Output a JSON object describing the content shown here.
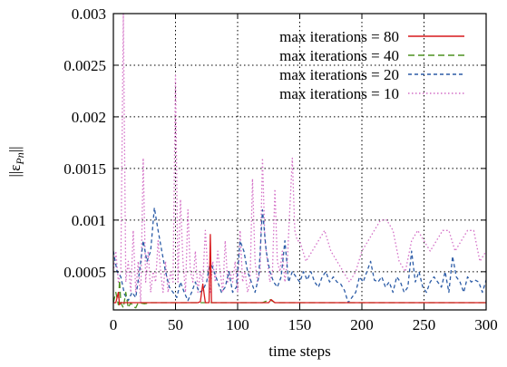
{
  "chart_data": {
    "type": "line",
    "xlabel": "time steps",
    "ylabel": "||ε",
    "ylabel_sub": "Pn",
    "ylabel_end": "||",
    "xlim": [
      0,
      300
    ],
    "ylim": [
      0.00013,
      0.003
    ],
    "x_ticks": [
      0,
      50,
      100,
      150,
      200,
      250,
      300
    ],
    "x_tick_labels": [
      "0",
      "50",
      "100",
      "150",
      "200",
      "250",
      "300"
    ],
    "y_ticks": [
      0.0005,
      0.001,
      0.0015,
      0.002,
      0.0025,
      0.003
    ],
    "y_tick_labels": [
      "0.0005",
      "0.001",
      "0.0015",
      "0.002",
      "0.0025",
      "0.003"
    ],
    "grid": true,
    "legend_position": "top-right",
    "series": [
      {
        "name": "max iterations = 80",
        "color": "#d7191c",
        "dash": "solid",
        "x": [
          0,
          2,
          4,
          5,
          6,
          8,
          10,
          15,
          20,
          40,
          60,
          68,
          70,
          72,
          74,
          76,
          77,
          78,
          79,
          80,
          82,
          90,
          100,
          120,
          125,
          127,
          130,
          140,
          150,
          200,
          250,
          300
        ],
        "y": [
          0.0002,
          0.0002,
          0.0003,
          0.00018,
          0.0002,
          0.0002,
          0.0002,
          0.0002,
          0.0002,
          0.0002,
          0.0002,
          0.0002,
          0.00021,
          0.00038,
          0.0002,
          0.0002,
          0.0002,
          0.00086,
          0.0002,
          0.0002,
          0.0002,
          0.0002,
          0.0002,
          0.0002,
          0.0002,
          0.00023,
          0.0002,
          0.0002,
          0.0002,
          0.0002,
          0.0002,
          0.0002
        ]
      },
      {
        "name": "max iterations = 40",
        "color": "#4d9221",
        "dash": "long-dash",
        "x": [
          0,
          2,
          4,
          5,
          6,
          8,
          10,
          12,
          14,
          16,
          18,
          20,
          25,
          30,
          60,
          100,
          120,
          126,
          130,
          150,
          200,
          250,
          300
        ],
        "y": [
          0.0002,
          0.0003,
          0.00018,
          0.00042,
          0.0002,
          0.00015,
          0.0003,
          0.00015,
          0.0002,
          0.00016,
          0.00015,
          0.0002,
          0.00019,
          0.0002,
          0.0002,
          0.0002,
          0.0002,
          0.00023,
          0.0002,
          0.0002,
          0.0002,
          0.0002,
          0.0002
        ]
      },
      {
        "name": "max iterations = 20",
        "color": "#2b5ba6",
        "dash": "dash",
        "x": [
          0,
          3,
          6,
          9,
          12,
          15,
          18,
          21,
          24,
          27,
          30,
          33,
          36,
          39,
          42,
          45,
          48,
          51,
          54,
          57,
          60,
          63,
          66,
          69,
          72,
          75,
          78,
          81,
          84,
          87,
          90,
          93,
          96,
          99,
          102,
          105,
          108,
          111,
          114,
          117,
          120,
          123,
          126,
          129,
          132,
          135,
          138,
          141,
          144,
          147,
          150,
          153,
          156,
          159,
          162,
          165,
          168,
          171,
          174,
          177,
          180,
          183,
          186,
          189,
          192,
          195,
          198,
          201,
          204,
          207,
          210,
          213,
          216,
          219,
          222,
          225,
          228,
          231,
          234,
          237,
          240,
          243,
          246,
          249,
          252,
          255,
          258,
          261,
          264,
          267,
          270,
          273,
          276,
          279,
          282,
          285,
          288,
          291,
          294,
          297,
          300
        ],
        "y": [
          0.0007,
          0.0005,
          0.00045,
          0.00028,
          0.00022,
          0.0003,
          0.00025,
          0.0005,
          0.0008,
          0.0006,
          0.0007,
          0.00112,
          0.0009,
          0.0007,
          0.0005,
          0.00035,
          0.0003,
          0.00025,
          0.0004,
          0.0003,
          0.00022,
          0.0003,
          0.0004,
          0.0003,
          0.00032,
          0.0004,
          0.0006,
          0.0005,
          0.0004,
          0.0003,
          0.00035,
          0.0005,
          0.0003,
          0.00035,
          0.0008,
          0.0007,
          0.0005,
          0.0004,
          0.0003,
          0.00045,
          0.0011,
          0.0007,
          0.0005,
          0.0004,
          0.00035,
          0.00045,
          0.0008,
          0.0004,
          0.0005,
          0.00045,
          0.0004,
          0.0005,
          0.00042,
          0.0005,
          0.0004,
          0.00035,
          0.00045,
          0.0005,
          0.0004,
          0.00045,
          0.0004,
          0.00038,
          0.00032,
          0.0002,
          0.00025,
          0.0003,
          0.00045,
          0.0004,
          0.0005,
          0.0006,
          0.00042,
          0.0004,
          0.00045,
          0.00035,
          0.0004,
          0.0003,
          0.00045,
          0.0004,
          0.0003,
          0.00035,
          0.0007,
          0.0004,
          0.0005,
          0.00035,
          0.0003,
          0.0004,
          0.00045,
          0.0004,
          0.00035,
          0.0005,
          0.0003,
          0.00065,
          0.00045,
          0.0004,
          0.0003,
          0.00045,
          0.0004,
          0.00042,
          0.0004,
          0.0003,
          0.00042
        ]
      },
      {
        "name": "max iterations = 10",
        "color": "#d36fc6",
        "dash": "dot",
        "x": [
          0,
          2,
          4,
          6,
          8,
          10,
          12,
          14,
          16,
          18,
          20,
          22,
          24,
          26,
          28,
          30,
          32,
          34,
          36,
          38,
          40,
          42,
          44,
          46,
          48,
          50,
          52,
          54,
          56,
          58,
          60,
          62,
          64,
          66,
          68,
          70,
          72,
          74,
          76,
          78,
          80,
          82,
          84,
          86,
          88,
          90,
          92,
          94,
          96,
          98,
          100,
          102,
          104,
          106,
          108,
          110,
          112,
          114,
          116,
          118,
          120,
          122,
          124,
          126,
          128,
          130,
          132,
          134,
          136,
          138,
          140,
          142,
          144,
          146,
          148,
          150,
          155,
          160,
          165,
          170,
          175,
          180,
          185,
          190,
          195,
          200,
          205,
          210,
          215,
          220,
          225,
          230,
          235,
          240,
          245,
          250,
          255,
          260,
          265,
          270,
          275,
          280,
          285,
          290,
          295,
          300
        ],
        "y": [
          0.0005,
          0.0007,
          0.0004,
          0.0005,
          0.003,
          0.0004,
          0.0006,
          0.0003,
          0.0009,
          0.0003,
          0.0006,
          0.0002,
          0.0016,
          0.0004,
          0.0007,
          0.0003,
          0.0005,
          0.0004,
          0.0008,
          0.0005,
          0.0003,
          0.0006,
          0.0003,
          0.0005,
          0.0004,
          0.0024,
          0.0004,
          0.0012,
          0.0006,
          0.0003,
          0.0011,
          0.0005,
          0.0004,
          0.0007,
          0.0003,
          0.0005,
          0.0004,
          0.0009,
          0.0005,
          0.0003,
          0.0006,
          0.0004,
          0.0007,
          0.0005,
          0.0003,
          0.0008,
          0.0004,
          0.0005,
          0.0004,
          0.0006,
          0.0003,
          0.0009,
          0.0004,
          0.0005,
          0.0003,
          0.0004,
          0.0014,
          0.0006,
          0.0004,
          0.0005,
          0.0016,
          0.0008,
          0.0006,
          0.0004,
          0.0005,
          0.0013,
          0.0006,
          0.0005,
          0.0007,
          0.0004,
          0.0006,
          0.0011,
          0.0016,
          0.0009,
          0.0008,
          0.0008,
          0.0006,
          0.0007,
          0.0008,
          0.0009,
          0.0007,
          0.0006,
          0.0005,
          0.0004,
          0.0005,
          0.0007,
          0.0008,
          0.0009,
          0.001,
          0.001,
          0.0009,
          0.0006,
          0.0005,
          0.0008,
          0.0009,
          0.0008,
          0.0007,
          0.0008,
          0.0009,
          0.0009,
          0.0007,
          0.0008,
          0.0009,
          0.0009,
          0.0006,
          0.0007
        ]
      }
    ]
  }
}
